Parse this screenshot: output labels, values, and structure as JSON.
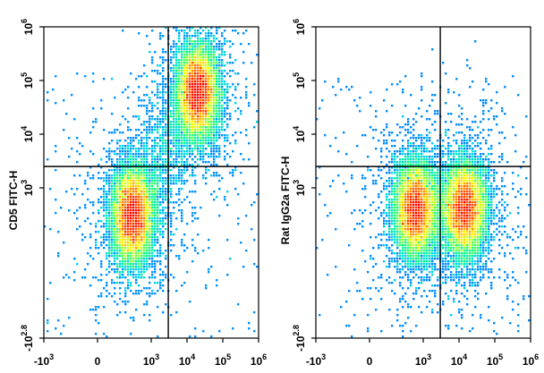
{
  "chart_data": [
    {
      "type": "scatter",
      "subtype": "flow-cytometry-density-dot-plot",
      "title": "",
      "xlabel": "",
      "ylabel": "CD5 FITC-H",
      "x_scale": "biexponential",
      "y_scale": "biexponential",
      "x_ticks": [
        {
          "base": "-10",
          "exp": "3"
        },
        {
          "base": "0",
          "exp": ""
        },
        {
          "base": "10",
          "exp": "3"
        },
        {
          "base": "10",
          "exp": "4"
        },
        {
          "base": "10",
          "exp": "5"
        },
        {
          "base": "10",
          "exp": "6"
        }
      ],
      "y_ticks": [
        {
          "base": "-10",
          "exp": "2.8"
        },
        {
          "base": "10",
          "exp": "3"
        },
        {
          "base": "10",
          "exp": "4"
        },
        {
          "base": "10",
          "exp": "5"
        },
        {
          "base": "10",
          "exp": "6"
        }
      ],
      "gate": {
        "x": 3000,
        "y": 2500
      },
      "populations": [
        {
          "x_center": 300,
          "y_center": 300,
          "relative_density": "high"
        },
        {
          "x_center": 20000,
          "y_center": 60000,
          "relative_density": "high"
        }
      ],
      "colormap": [
        "#0000ff",
        "#00c8ff",
        "#00ff80",
        "#ffff00",
        "#ff0000"
      ]
    },
    {
      "type": "scatter",
      "subtype": "flow-cytometry-density-dot-plot",
      "title": "",
      "xlabel": "",
      "ylabel": "Rat IgG2a FITC-H",
      "x_scale": "biexponential",
      "y_scale": "biexponential",
      "x_ticks": [
        {
          "base": "-10",
          "exp": "3"
        },
        {
          "base": "0",
          "exp": ""
        },
        {
          "base": "10",
          "exp": "3"
        },
        {
          "base": "10",
          "exp": "4"
        },
        {
          "base": "10",
          "exp": "5"
        },
        {
          "base": "10",
          "exp": "6"
        }
      ],
      "y_ticks": [
        {
          "base": "-10",
          "exp": "2.8"
        },
        {
          "base": "10",
          "exp": "3"
        },
        {
          "base": "10",
          "exp": "4"
        },
        {
          "base": "10",
          "exp": "5"
        },
        {
          "base": "10",
          "exp": "6"
        }
      ],
      "gate": {
        "x": 3000,
        "y": 2500
      },
      "populations": [
        {
          "x_center": 600,
          "y_center": 400,
          "relative_density": "high"
        },
        {
          "x_center": 15000,
          "y_center": 400,
          "relative_density": "high"
        }
      ],
      "colormap": [
        "#0000ff",
        "#00c8ff",
        "#00ff80",
        "#ffff00",
        "#ff0000"
      ]
    }
  ]
}
